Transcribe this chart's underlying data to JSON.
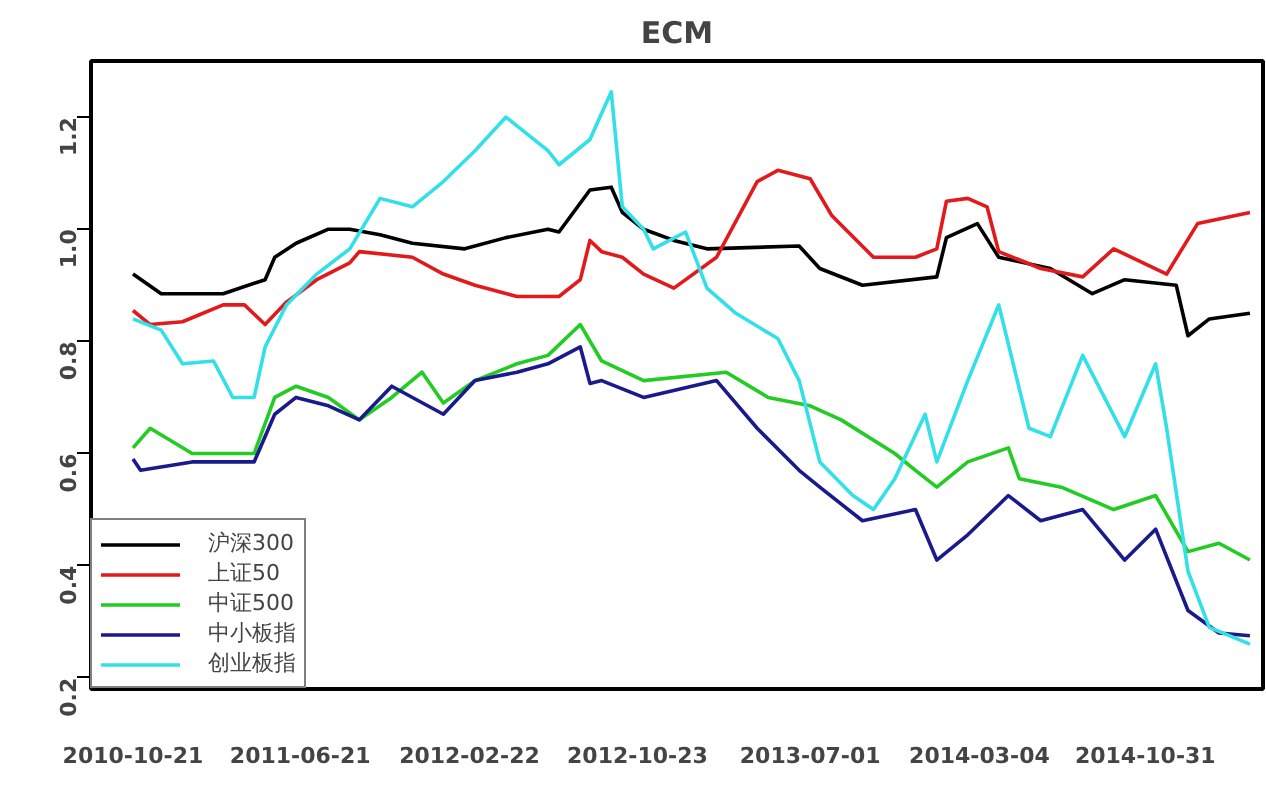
{
  "chart_data": {
    "type": "line",
    "title": "ECM",
    "xlim": [
      "2010-08-21",
      "2015-04-20"
    ],
    "xticks": [
      "2010-10-21",
      "2011-06-21",
      "2012-02-22",
      "2012-10-23",
      "2013-07-01",
      "2014-03-04",
      "2014-10-31"
    ],
    "ylim": [
      0.18,
      1.3
    ],
    "yticks": [
      0.2,
      0.4,
      0.6,
      0.8,
      {
        "value": 1,
        "label": "1.0"
      },
      1.2
    ],
    "grid": false,
    "legend": "bottom left",
    "marker": "none",
    "line_style": "solid",
    "series": [
      {
        "name": "沪深300",
        "color": "#000000",
        "x": [
          "2010-10-21",
          "2010-12",
          "2011-03",
          "2011-05",
          "2011-05-15",
          "2011-06-15",
          "2011-08",
          "2011-09",
          "2011-10-15",
          "2011-12",
          "2012-02-15",
          "2012-04-15",
          "2012-06-15",
          "2012-07",
          "2012-08-15",
          "2012-09-15",
          "2012-10",
          "2012-11",
          "2012-12-15",
          "2013-02",
          "2013-06-15",
          "2013-07-15",
          "2013-09-15",
          "2014-01",
          "2014-01-15",
          "2014-03",
          "2014-04",
          "2014-06-15",
          "2014-08-15",
          "2014-10",
          "2014-12-15",
          "2015-01",
          "2015-02",
          "2015-04"
        ],
        "values": [
          0.92,
          0.885,
          0.885,
          0.91,
          0.95,
          0.975,
          1.0,
          1.0,
          0.99,
          0.975,
          0.965,
          0.985,
          1.0,
          0.995,
          1.07,
          1.075,
          1.03,
          1.0,
          0.98,
          0.965,
          0.97,
          0.93,
          0.9,
          0.915,
          0.985,
          1.01,
          0.95,
          0.93,
          0.885,
          0.91,
          0.9,
          0.81,
          0.84,
          0.85
        ]
      },
      {
        "name": "上证50",
        "color": "#e31a1c",
        "x": [
          "2010-10-21",
          "2010-11-15",
          "2011-01",
          "2011-03",
          "2011-04",
          "2011-05",
          "2011-06",
          "2011-07-15",
          "2011-09",
          "2011-09-15",
          "2011-12",
          "2012-01-15",
          "2012-03",
          "2012-05",
          "2012-07",
          "2012-08",
          "2012-08-15",
          "2012-09",
          "2012-10",
          "2012-11",
          "2012-12-15",
          "2013-02-15",
          "2013-04-15",
          "2013-05-15",
          "2013-07",
          "2013-08",
          "2013-10",
          "2013-12",
          "2014-01",
          "2014-01-15",
          "2014-02-15",
          "2014-03-15",
          "2014-04",
          "2014-06",
          "2014-08",
          "2014-09-15",
          "2014-12",
          "2015-01-15",
          "2015-04"
        ],
        "values": [
          0.855,
          0.83,
          0.835,
          0.865,
          0.865,
          0.83,
          0.87,
          0.91,
          0.94,
          0.96,
          0.95,
          0.92,
          0.9,
          0.88,
          0.88,
          0.91,
          0.98,
          0.96,
          0.95,
          0.92,
          0.895,
          0.95,
          1.085,
          1.105,
          1.09,
          1.025,
          0.95,
          0.95,
          0.965,
          1.05,
          1.055,
          1.04,
          0.96,
          0.93,
          0.915,
          0.965,
          0.92,
          1.01,
          1.03
        ]
      },
      {
        "name": "中证500",
        "color": "#22cc22",
        "x": [
          "2010-10-21",
          "2010-11-15",
          "2011-01-15",
          "2011-04-15",
          "2011-05-15",
          "2011-06-15",
          "2011-08",
          "2011-09-15",
          "2011-11",
          "2011-12-15",
          "2012-01-15",
          "2012-03",
          "2012-05",
          "2012-06-15",
          "2012-08",
          "2012-09",
          "2012-11",
          "2013-03",
          "2013-05",
          "2013-07",
          "2013-08-15",
          "2013-11",
          "2013-12",
          "2014-01",
          "2014-02-15",
          "2014-04-15",
          "2014-05",
          "2014-07",
          "2014-09-15",
          "2014-11-15",
          "2015-01",
          "2015-02-15",
          "2015-04"
        ],
        "values": [
          0.61,
          0.645,
          0.6,
          0.6,
          0.7,
          0.72,
          0.7,
          0.66,
          0.7,
          0.745,
          0.69,
          0.73,
          0.76,
          0.775,
          0.83,
          0.765,
          0.73,
          0.745,
          0.7,
          0.685,
          0.66,
          0.6,
          0.57,
          0.54,
          0.585,
          0.61,
          0.555,
          0.54,
          0.5,
          0.525,
          0.425,
          0.44,
          0.41
        ]
      },
      {
        "name": "中小板指",
        "color": "#1a1a8c",
        "x": [
          "2010-10-21",
          "2010-11",
          "2011-01-15",
          "2011-04-15",
          "2011-05-15",
          "2011-06-15",
          "2011-08",
          "2011-09-15",
          "2011-11",
          "2012-01-15",
          "2012-03",
          "2012-05",
          "2012-06-15",
          "2012-08",
          "2012-08-15",
          "2012-09",
          "2012-11",
          "2013-02-15",
          "2013-04-15",
          "2013-06-15",
          "2013-07-15",
          "2013-09-15",
          "2013-12",
          "2014-01",
          "2014-02-15",
          "2014-04-15",
          "2014-06",
          "2014-08",
          "2014-10",
          "2014-11-15",
          "2015-01",
          "2015-02-15",
          "2015-04"
        ],
        "values": [
          0.59,
          0.57,
          0.585,
          0.585,
          0.67,
          0.7,
          0.685,
          0.66,
          0.72,
          0.67,
          0.73,
          0.745,
          0.76,
          0.79,
          0.725,
          0.73,
          0.7,
          0.73,
          0.645,
          0.57,
          0.54,
          0.48,
          0.5,
          0.41,
          0.455,
          0.525,
          0.48,
          0.5,
          0.41,
          0.465,
          0.32,
          0.28,
          0.275
        ]
      },
      {
        "name": "创业板指",
        "color": "#33e0e8",
        "x": [
          "2010-10-21",
          "2010-12",
          "2011-01",
          "2011-02-15",
          "2011-03-15",
          "2011-04-15",
          "2011-05",
          "2011-06",
          "2011-07-15",
          "2011-09",
          "2011-10-15",
          "2011-12",
          "2012-01-15",
          "2012-03",
          "2012-04-15",
          "2012-06-15",
          "2012-07",
          "2012-08-15",
          "2012-09-15",
          "2012-10",
          "2012-11",
          "2012-11-15",
          "2013-01",
          "2013-02",
          "2013-03-15",
          "2013-05-15",
          "2013-06-15",
          "2013-07-15",
          "2013-09",
          "2013-10",
          "2013-11",
          "2013-12-15",
          "2014-01",
          "2014-02-15",
          "2014-04",
          "2014-05-15",
          "2014-06-15",
          "2014-08",
          "2014-10",
          "2014-11-15",
          "2014-12",
          "2015-01",
          "2015-02",
          "2015-04"
        ],
        "values": [
          0.84,
          0.82,
          0.76,
          0.765,
          0.7,
          0.7,
          0.79,
          0.865,
          0.92,
          0.965,
          1.055,
          1.04,
          1.085,
          1.14,
          1.2,
          1.14,
          1.115,
          1.16,
          1.245,
          1.04,
          1.0,
          0.965,
          0.995,
          0.895,
          0.85,
          0.805,
          0.73,
          0.585,
          0.525,
          0.5,
          0.555,
          0.67,
          0.585,
          0.73,
          0.865,
          0.645,
          0.63,
          0.775,
          0.63,
          0.76,
          0.645,
          0.39,
          0.29,
          0.26
        ]
      }
    ]
  }
}
